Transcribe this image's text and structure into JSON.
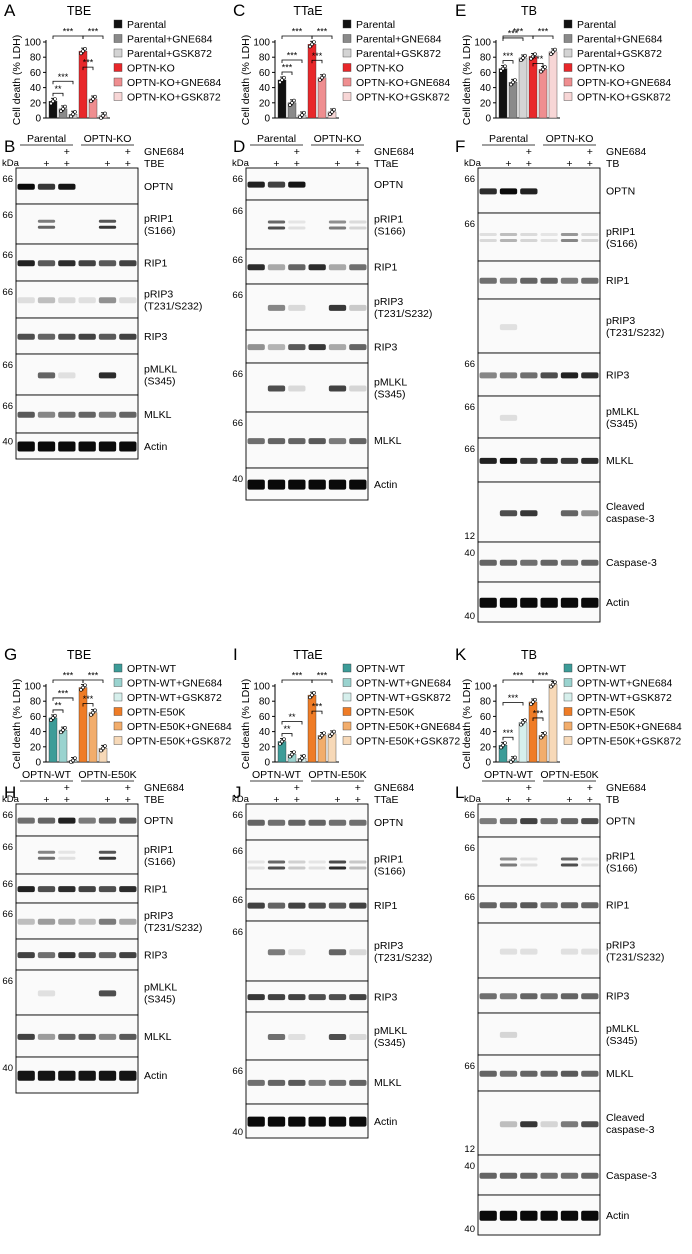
{
  "colors": {
    "parental": "#111111",
    "parental_gne": "#8a8a8a",
    "parental_gsk": "#d4d4d4",
    "ko": "#e8272a",
    "ko_gne": "#ef8e90",
    "ko_gsk": "#f7d6d6",
    "wt": "#3d9c98",
    "wt_gne": "#9ad3cf",
    "wt_gsk": "#d6efec",
    "e50k": "#ef7c26",
    "e50k_gne": "#f2ad6c",
    "e50k_gsk": "#f7d9b8"
  },
  "common": {
    "kda": "kDa",
    "gne_label": "GNE684",
    "plus": "+",
    "ylabel": "Cell death (% LDH)",
    "ko_groups": [
      "Parental",
      "OPTN-KO"
    ],
    "wt_groups": [
      "OPTN-WT",
      "OPTN-E50K"
    ],
    "ko_legend": [
      "Parental",
      "Parental+GNE684",
      "Parental+GSK872",
      "OPTN-KO",
      "OPTN-KO+GNE684",
      "OPTN-KO+GSK872"
    ],
    "wt_legend": [
      "OPTN-WT",
      "OPTN-WT+GNE684",
      "OPTN-WT+GSK872",
      "OPTN-E50K",
      "OPTN-E50K+GNE684",
      "OPTN-E50K+GSK872"
    ]
  },
  "chart_data": [
    {
      "panel": "A",
      "title": "TBE",
      "type": "bar",
      "ylabel": "Cell death (% LDH)",
      "ylim": [
        0,
        100
      ],
      "yticks": [
        0,
        20,
        40,
        60,
        80,
        100
      ],
      "categories": [
        "Parental",
        "Parental+GNE684",
        "Parental+GSK872",
        "OPTN-KO",
        "OPTN-KO+GNE684",
        "OPTN-KO+GSK872"
      ],
      "values": [
        22,
        12,
        5,
        88,
        25,
        3
      ],
      "significance": [
        {
          "from": 0,
          "to": 1,
          "label": "**"
        },
        {
          "from": 0,
          "to": 2,
          "label": "***"
        },
        {
          "from": 0,
          "to": 3,
          "label": "***"
        },
        {
          "from": 3,
          "to": 4,
          "label": "***"
        },
        {
          "from": 3,
          "to": 5,
          "label": "***"
        }
      ]
    },
    {
      "panel": "C",
      "title": "TTaE",
      "type": "bar",
      "ylabel": "Cell death (% LDH)",
      "ylim": [
        0,
        100
      ],
      "yticks": [
        0,
        20,
        40,
        60,
        80,
        100
      ],
      "categories": [
        "Parental",
        "Parental+GNE684",
        "Parental+GSK872",
        "OPTN-KO",
        "OPTN-KO+GNE684",
        "OPTN-KO+GSK872"
      ],
      "values": [
        50,
        20,
        4,
        97,
        53,
        8
      ],
      "significance": [
        {
          "from": 0,
          "to": 1,
          "label": "***"
        },
        {
          "from": 0,
          "to": 2,
          "label": "***"
        },
        {
          "from": 0,
          "to": 3,
          "label": "***"
        },
        {
          "from": 3,
          "to": 4,
          "label": "***"
        },
        {
          "from": 3,
          "to": 5,
          "label": "***"
        }
      ]
    },
    {
      "panel": "E",
      "title": "TB",
      "type": "bar",
      "ylabel": "Cell death (% LDH)",
      "ylim": [
        0,
        100
      ],
      "yticks": [
        0,
        20,
        40,
        60,
        80,
        100
      ],
      "categories": [
        "Parental",
        "Parental+GNE684",
        "Parental+GSK872",
        "OPTN-KO",
        "OPTN-KO+GNE684",
        "OPTN-KO+GSK872"
      ],
      "values": [
        65,
        47,
        79,
        81,
        64,
        87
      ],
      "significance": [
        {
          "from": 0,
          "to": 1,
          "label": "***"
        },
        {
          "from": 0,
          "to": 2,
          "label": "***"
        },
        {
          "from": 0,
          "to": 3,
          "label": "***"
        },
        {
          "from": 3,
          "to": 4,
          "label": "***"
        },
        {
          "from": 3,
          "to": 5,
          "label": "***"
        }
      ]
    },
    {
      "panel": "G",
      "title": "TBE",
      "type": "bar",
      "ylabel": "Cell death (% LDH)",
      "ylim": [
        0,
        100
      ],
      "yticks": [
        0,
        20,
        40,
        60,
        80,
        100
      ],
      "categories": [
        "OPTN-WT",
        "OPTN-WT+GNE684",
        "OPTN-WT+GSK872",
        "OPTN-E50K",
        "OPTN-E50K+GNE684",
        "OPTN-E50K+GSK872"
      ],
      "values": [
        58,
        42,
        2,
        98,
        65,
        18
      ],
      "significance": [
        {
          "from": 0,
          "to": 1,
          "label": "**"
        },
        {
          "from": 0,
          "to": 2,
          "label": "***"
        },
        {
          "from": 0,
          "to": 3,
          "label": "***"
        },
        {
          "from": 3,
          "to": 4,
          "label": "***"
        },
        {
          "from": 3,
          "to": 5,
          "label": "***"
        }
      ]
    },
    {
      "panel": "I",
      "title": "TTaE",
      "type": "bar",
      "ylabel": "Cell death (% LDH)",
      "ylim": [
        0,
        100
      ],
      "yticks": [
        0,
        20,
        40,
        60,
        80,
        100
      ],
      "categories": [
        "OPTN-WT",
        "OPTN-WT+GNE684",
        "OPTN-WT+GSK872",
        "OPTN-E50K",
        "OPTN-E50K+GNE684",
        "OPTN-E50K+GSK872"
      ],
      "values": [
        27,
        10,
        5,
        88,
        35,
        37
      ],
      "significance": [
        {
          "from": 0,
          "to": 1,
          "label": "**"
        },
        {
          "from": 0,
          "to": 2,
          "label": "**"
        },
        {
          "from": 0,
          "to": 3,
          "label": "***"
        },
        {
          "from": 3,
          "to": 4,
          "label": "***"
        },
        {
          "from": 3,
          "to": 5,
          "label": "***"
        }
      ]
    },
    {
      "panel": "K",
      "title": "TB",
      "type": "bar",
      "ylabel": "Cell death (% LDH)",
      "ylim": [
        0,
        100
      ],
      "yticks": [
        0,
        20,
        40,
        60,
        80,
        100
      ],
      "categories": [
        "OPTN-WT",
        "OPTN-WT+GNE684",
        "OPTN-WT+GSK872",
        "OPTN-E50K",
        "OPTN-E50K+GNE684",
        "OPTN-E50K+GSK872"
      ],
      "values": [
        22,
        3,
        52,
        79,
        35,
        102
      ],
      "significance": [
        {
          "from": 0,
          "to": 1,
          "label": "***"
        },
        {
          "from": 0,
          "to": 2,
          "label": "***"
        },
        {
          "from": 0,
          "to": 3,
          "label": "***"
        },
        {
          "from": 3,
          "to": 4,
          "label": "***"
        },
        {
          "from": 3,
          "to": 5,
          "label": "***"
        }
      ]
    }
  ],
  "blots": [
    {
      "panel": "B",
      "stim": "TBE",
      "groups_key": "ko",
      "treat_plus": [
        false,
        true,
        true,
        false,
        true,
        true
      ],
      "gne_plus": [
        false,
        false,
        true,
        false,
        false,
        true
      ],
      "rows": [
        {
          "label": "OPTN",
          "mw": "66",
          "i": [
            1,
            0.8,
            0.95,
            0,
            0,
            0
          ]
        },
        {
          "label": "pRIP1\n(S166)",
          "mw": "66",
          "i": [
            0,
            0.6,
            0,
            0,
            0.8,
            0
          ],
          "doublet": true
        },
        {
          "label": "RIP1",
          "mw": "66",
          "i": [
            0.9,
            0.65,
            0.85,
            0.75,
            0.65,
            0.75
          ]
        },
        {
          "label": "pRIP3\n(T231/S232)",
          "mw": "66",
          "i": [
            0.06,
            0.2,
            0.08,
            0.05,
            0.4,
            0.06
          ]
        },
        {
          "label": "RIP3",
          "mw": "",
          "i": [
            0.7,
            0.6,
            0.7,
            0.75,
            0.65,
            0.75
          ]
        },
        {
          "label": "pMLKL\n(S345)",
          "mw": "66",
          "i": [
            0,
            0.6,
            0.05,
            0,
            0.85,
            0
          ]
        },
        {
          "label": "MLKL",
          "mw": "66",
          "i": [
            0.65,
            0.45,
            0.55,
            0.6,
            0.5,
            0.6
          ]
        },
        {
          "label": "Actin",
          "mw": "40",
          "i": [
            1,
            1,
            1,
            1,
            1,
            1
          ]
        }
      ]
    },
    {
      "panel": "D",
      "stim": "TTaE",
      "groups_key": "ko",
      "treat_plus": [
        false,
        true,
        true,
        false,
        true,
        true
      ],
      "gne_plus": [
        false,
        false,
        true,
        false,
        false,
        true
      ],
      "rows": [
        {
          "label": "OPTN",
          "mw": "66",
          "i": [
            0.9,
            0.75,
            0.95,
            0,
            0,
            0
          ]
        },
        {
          "label": "pRIP1\n(S166)",
          "mw": "66",
          "i": [
            0,
            0.7,
            0.05,
            0,
            0.5,
            0.1
          ],
          "doublet": true
        },
        {
          "label": "RIP1",
          "mw": "66",
          "i": [
            0.85,
            0.3,
            0.6,
            0.85,
            0.3,
            0.55
          ]
        },
        {
          "label": "pRIP3\n(T231/S232)",
          "mw": "66",
          "i": [
            0,
            0.45,
            0.08,
            0,
            0.8,
            0.15
          ]
        },
        {
          "label": "RIP3",
          "mw": "",
          "i": [
            0.4,
            0.25,
            0.65,
            0.8,
            0.3,
            0.6
          ]
        },
        {
          "label": "pMLKL\n(S345)",
          "mw": "66",
          "i": [
            0,
            0.7,
            0.08,
            0,
            0.75,
            0.1
          ]
        },
        {
          "label": "MLKL",
          "mw": "66",
          "i": [
            0.55,
            0.6,
            0.6,
            0.65,
            0.5,
            0.6
          ]
        },
        {
          "label": "Actin",
          "mw": "40",
          "i": [
            1,
            1,
            1,
            1,
            1,
            1
          ]
        }
      ]
    },
    {
      "panel": "F",
      "stim": "TB",
      "groups_key": "ko",
      "treat_plus": [
        false,
        true,
        true,
        false,
        true,
        true
      ],
      "gne_plus": [
        false,
        false,
        true,
        false,
        false,
        true
      ],
      "rows": [
        {
          "label": "OPTN",
          "mw": "66",
          "i": [
            0.85,
            1,
            0.9,
            0,
            0,
            0
          ]
        },
        {
          "label": "pRIP1\n(S166)",
          "mw": "66",
          "i": [
            0.08,
            0.25,
            0.1,
            0.05,
            0.45,
            0.1
          ],
          "doublet": true
        },
        {
          "label": "RIP1",
          "mw": "",
          "i": [
            0.55,
            0.5,
            0.6,
            0.6,
            0.5,
            0.55
          ]
        },
        {
          "label": "pRIP3\n(T231/S232)",
          "mw": "",
          "i": [
            0,
            0.05,
            0,
            0,
            0,
            0
          ]
        },
        {
          "label": "RIP3",
          "mw": "66",
          "i": [
            0.45,
            0.5,
            0.55,
            0.7,
            0.9,
            0.85
          ]
        },
        {
          "label": "pMLKL\n(S345)",
          "mw": "66",
          "i": [
            0,
            0.06,
            0,
            0,
            0,
            0
          ]
        },
        {
          "label": "MLKL",
          "mw": "66",
          "i": [
            0.9,
            0.95,
            0.8,
            0.85,
            0.8,
            0.85
          ]
        },
        {
          "label": "Cleaved\ncaspase-3",
          "mw": "12",
          "mwBottom": true,
          "i": [
            0,
            0.7,
            0.8,
            0,
            0.6,
            0.4
          ]
        },
        {
          "label": "Caspase-3",
          "mw": "40",
          "i": [
            0.6,
            0.6,
            0.55,
            0.6,
            0.55,
            0.6
          ]
        },
        {
          "label": "Actin",
          "mw": "40",
          "mwBottom": true,
          "i": [
            1,
            1,
            1,
            1,
            1,
            1
          ]
        }
      ]
    },
    {
      "panel": "H",
      "stim": "TBE",
      "groups_key": "wt",
      "treat_plus": [
        false,
        true,
        true,
        false,
        true,
        true
      ],
      "gne_plus": [
        false,
        false,
        true,
        false,
        false,
        true
      ],
      "rows": [
        {
          "label": "OPTN",
          "mw": "66",
          "i": [
            0.55,
            0.6,
            0.9,
            0.5,
            0.6,
            0.65
          ]
        },
        {
          "label": "pRIP1\n(S166)",
          "mw": "66",
          "i": [
            0,
            0.55,
            0.05,
            0,
            0.8,
            0
          ],
          "doublet": true
        },
        {
          "label": "RIP1",
          "mw": "66",
          "i": [
            0.9,
            0.7,
            0.85,
            0.75,
            0.7,
            0.85
          ]
        },
        {
          "label": "pRIP3\n(T231/S232)",
          "mw": "66",
          "i": [
            0.2,
            0.35,
            0.3,
            0.2,
            0.5,
            0.3
          ]
        },
        {
          "label": "RIP3",
          "mw": "",
          "i": [
            0.75,
            0.55,
            0.8,
            0.7,
            0.6,
            0.75
          ]
        },
        {
          "label": "pMLKL\n(S345)",
          "mw": "66",
          "i": [
            0,
            0.05,
            0,
            0,
            0.7,
            0
          ]
        },
        {
          "label": "MLKL",
          "mw": "",
          "i": [
            0.75,
            0.35,
            0.6,
            0.65,
            0.45,
            0.65
          ]
        },
        {
          "label": "Actin",
          "mw": "40",
          "i": [
            0.95,
            0.95,
            0.95,
            0.95,
            0.95,
            0.95
          ]
        }
      ]
    },
    {
      "panel": "J",
      "stim": "TTaE",
      "groups_key": "wt",
      "treat_plus": [
        false,
        true,
        true,
        false,
        true,
        true
      ],
      "gne_plus": [
        false,
        false,
        true,
        false,
        false,
        true
      ],
      "rows": [
        {
          "label": "OPTN",
          "mw": "66",
          "i": [
            0.6,
            0.55,
            0.6,
            0.6,
            0.55,
            0.55
          ]
        },
        {
          "label": "pRIP1\n(S166)",
          "mw": "66",
          "i": [
            0.05,
            0.7,
            0.15,
            0.05,
            0.85,
            0.2
          ],
          "doublet": true
        },
        {
          "label": "RIP1",
          "mw": "66",
          "i": [
            0.75,
            0.6,
            0.75,
            0.7,
            0.65,
            0.75
          ]
        },
        {
          "label": "pRIP3\n(T231/S232)",
          "mw": "66",
          "i": [
            0,
            0.5,
            0.05,
            0,
            0.6,
            0.08
          ]
        },
        {
          "label": "RIP3",
          "mw": "",
          "i": [
            0.8,
            0.75,
            0.75,
            0.7,
            0.7,
            0.75
          ]
        },
        {
          "label": "pMLKL\n(S345)",
          "mw": "",
          "i": [
            0,
            0.55,
            0.05,
            0,
            0.7,
            0.08
          ]
        },
        {
          "label": "MLKL",
          "mw": "66",
          "i": [
            0.55,
            0.6,
            0.65,
            0.5,
            0.55,
            0.6
          ]
        },
        {
          "label": "Actin",
          "mw": "40",
          "mwBottom": true,
          "i": [
            1,
            1,
            1,
            1,
            1,
            1
          ]
        }
      ]
    },
    {
      "panel": "L",
      "stim": "TB",
      "groups_key": "wt",
      "treat_plus": [
        false,
        true,
        true,
        false,
        true,
        true
      ],
      "gne_plus": [
        false,
        false,
        true,
        false,
        false,
        true
      ],
      "rows": [
        {
          "label": "OPTN",
          "mw": "66",
          "i": [
            0.5,
            0.55,
            0.75,
            0.55,
            0.6,
            0.7
          ]
        },
        {
          "label": "pRIP1\n(S166)",
          "mw": "66",
          "i": [
            0,
            0.5,
            0.05,
            0,
            0.7,
            0.05
          ],
          "doublet": true
        },
        {
          "label": "RIP1",
          "mw": "66",
          "i": [
            0.6,
            0.6,
            0.65,
            0.55,
            0.6,
            0.6
          ]
        },
        {
          "label": "pRIP3\n(T231/S232)",
          "mw": "",
          "i": [
            0,
            0.05,
            0.05,
            0,
            0.05,
            0.05
          ]
        },
        {
          "label": "RIP3",
          "mw": "",
          "i": [
            0.55,
            0.5,
            0.6,
            0.55,
            0.6,
            0.6
          ]
        },
        {
          "label": "pMLKL\n(S345)",
          "mw": "",
          "i": [
            0,
            0.1,
            0,
            0,
            0,
            0
          ]
        },
        {
          "label": "MLKL",
          "mw": "66",
          "i": [
            0.6,
            0.55,
            0.6,
            0.6,
            0.65,
            0.6
          ]
        },
        {
          "label": "Cleaved\ncaspase-3",
          "mw": "12",
          "mwBottom": true,
          "i": [
            0,
            0.2,
            0.8,
            0.1,
            0.5,
            0.7
          ]
        },
        {
          "label": "Caspase-3",
          "mw": "40",
          "i": [
            0.6,
            0.6,
            0.6,
            0.55,
            0.55,
            0.6
          ]
        },
        {
          "label": "Actin",
          "mw": "40",
          "mwBottom": true,
          "i": [
            1,
            1,
            1,
            1,
            1,
            1
          ]
        }
      ]
    }
  ]
}
